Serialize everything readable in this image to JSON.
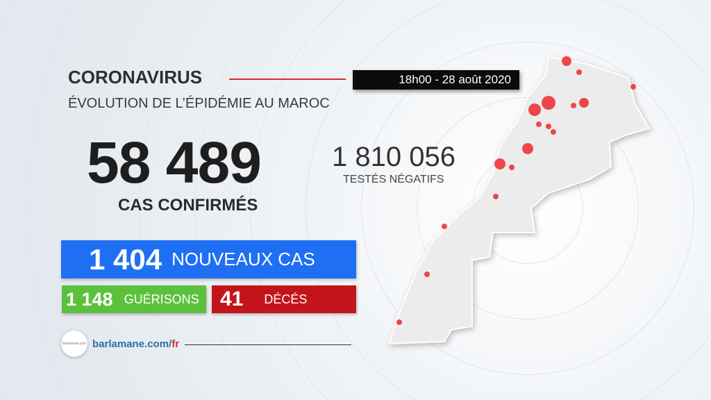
{
  "header": {
    "title": "CORONAVIRUS",
    "date": "18h00  - 28 août 2020",
    "subtitle": "ÉVOLUTION DE L’ÉPIDÉMIE AU MAROC"
  },
  "confirmed": {
    "value": "58 489",
    "label": "CAS CONFIRMÉS"
  },
  "tested": {
    "value": "1 810 056",
    "label": "TESTÉS NÉGATIFS"
  },
  "new_cases": {
    "value": "1 404",
    "label": "NOUVEAUX CAS",
    "color": "#1f6ff5"
  },
  "recovered": {
    "value": "1 148",
    "label": "GUÉRISONS",
    "color": "#5bc13d"
  },
  "deaths": {
    "value": "41",
    "label": "DÉCÉS",
    "color": "#c3141c"
  },
  "footer": {
    "site": "barlamane.com/",
    "site_suffix": "fr",
    "logo_text": "barlamane.com"
  },
  "map": {
    "region": "Maroc",
    "fill": "#ebebeb",
    "dot_color": "#f0282d"
  }
}
